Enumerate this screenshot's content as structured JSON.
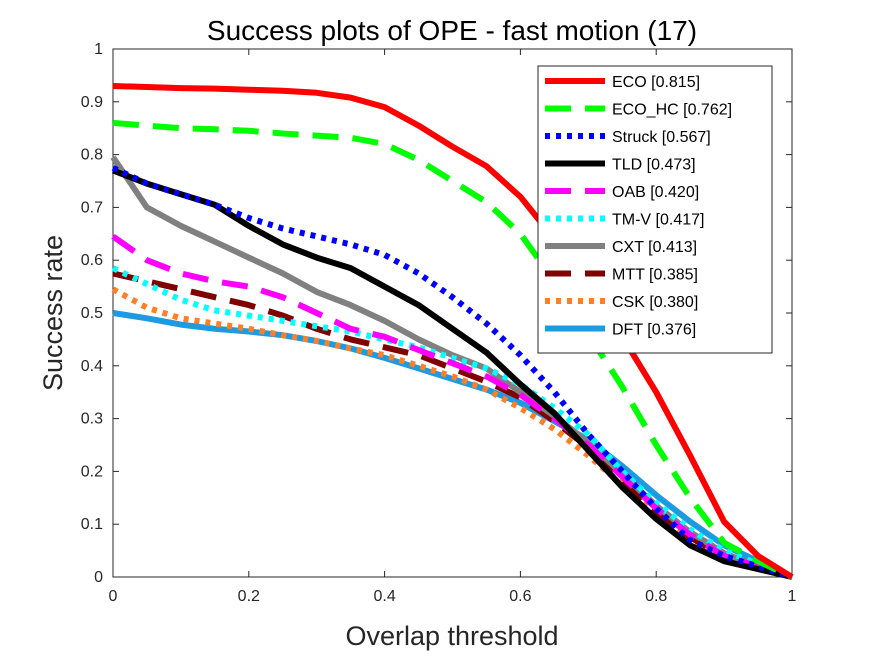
{
  "chart_data": {
    "type": "line",
    "title": "Success plots of OPE - fast motion (17)",
    "xlabel": "Overlap threshold",
    "ylabel": "Success rate",
    "xlim": [
      0,
      1
    ],
    "ylim": [
      0,
      1
    ],
    "x_ticks": [
      "0",
      "0.2",
      "0.4",
      "0.6",
      "0.8",
      "1"
    ],
    "y_ticks": [
      "0",
      "0.1",
      "0.2",
      "0.3",
      "0.4",
      "0.5",
      "0.6",
      "0.7",
      "0.8",
      "0.9",
      "1"
    ],
    "grid": false,
    "legend_position": "top-right",
    "x": [
      0,
      0.05,
      0.1,
      0.15,
      0.2,
      0.25,
      0.3,
      0.35,
      0.4,
      0.45,
      0.5,
      0.55,
      0.6,
      0.65,
      0.7,
      0.75,
      0.8,
      0.85,
      0.9,
      0.95,
      1
    ],
    "series": [
      {
        "name": "ECO [0.815]",
        "color": "#ff0000",
        "style": "solid",
        "values": [
          0.93,
          0.928,
          0.926,
          0.925,
          0.923,
          0.921,
          0.917,
          0.908,
          0.89,
          0.855,
          0.815,
          0.778,
          0.72,
          0.64,
          0.55,
          0.455,
          0.35,
          0.23,
          0.105,
          0.04,
          0.0
        ]
      },
      {
        "name": "ECO_HC [0.762]",
        "color": "#00ff00",
        "style": "dash",
        "values": [
          0.86,
          0.855,
          0.85,
          0.848,
          0.845,
          0.84,
          0.836,
          0.832,
          0.82,
          0.79,
          0.75,
          0.71,
          0.65,
          0.56,
          0.46,
          0.36,
          0.25,
          0.15,
          0.065,
          0.03,
          0.0
        ]
      },
      {
        "name": "Struck [0.567]",
        "color": "#0000ff",
        "style": "dot",
        "values": [
          0.775,
          0.745,
          0.725,
          0.705,
          0.68,
          0.66,
          0.645,
          0.63,
          0.61,
          0.575,
          0.53,
          0.48,
          0.42,
          0.35,
          0.27,
          0.2,
          0.13,
          0.07,
          0.04,
          0.02,
          0.0
        ]
      },
      {
        "name": "TLD [0.473]",
        "color": "#000000",
        "style": "solid",
        "values": [
          0.77,
          0.745,
          0.725,
          0.705,
          0.665,
          0.63,
          0.605,
          0.585,
          0.55,
          0.515,
          0.47,
          0.425,
          0.365,
          0.31,
          0.24,
          0.17,
          0.11,
          0.06,
          0.03,
          0.015,
          0.0
        ]
      },
      {
        "name": "OAB [0.420]",
        "color": "#ff00ff",
        "style": "dash",
        "values": [
          0.645,
          0.6,
          0.575,
          0.56,
          0.55,
          0.53,
          0.5,
          0.47,
          0.455,
          0.43,
          0.405,
          0.38,
          0.345,
          0.3,
          0.25,
          0.19,
          0.13,
          0.08,
          0.04,
          0.02,
          0.0
        ]
      },
      {
        "name": "TM-V [0.417]",
        "color": "#00ffff",
        "style": "dot",
        "values": [
          0.585,
          0.555,
          0.525,
          0.505,
          0.495,
          0.485,
          0.475,
          0.465,
          0.45,
          0.435,
          0.415,
          0.395,
          0.365,
          0.32,
          0.27,
          0.2,
          0.14,
          0.09,
          0.05,
          0.025,
          0.0
        ]
      },
      {
        "name": "CXT [0.413]",
        "color": "#808080",
        "style": "solid",
        "values": [
          0.795,
          0.7,
          0.665,
          0.635,
          0.605,
          0.575,
          0.54,
          0.515,
          0.485,
          0.45,
          0.42,
          0.395,
          0.35,
          0.305,
          0.255,
          0.195,
          0.135,
          0.085,
          0.045,
          0.02,
          0.0
        ]
      },
      {
        "name": "MTT [0.385]",
        "color": "#800000",
        "style": "dash",
        "values": [
          0.575,
          0.56,
          0.545,
          0.53,
          0.515,
          0.495,
          0.47,
          0.45,
          0.435,
          0.42,
          0.395,
          0.37,
          0.34,
          0.295,
          0.245,
          0.18,
          0.12,
          0.075,
          0.04,
          0.02,
          0.0
        ]
      },
      {
        "name": "CSK [0.380]",
        "color": "#ff7f27",
        "style": "dot",
        "values": [
          0.545,
          0.51,
          0.49,
          0.48,
          0.47,
          0.458,
          0.447,
          0.433,
          0.42,
          0.4,
          0.38,
          0.355,
          0.32,
          0.28,
          0.23,
          0.175,
          0.115,
          0.07,
          0.035,
          0.018,
          0.0
        ]
      },
      {
        "name": "DFT [0.376]",
        "color": "#1e9be0",
        "style": "solid",
        "values": [
          0.5,
          0.49,
          0.478,
          0.47,
          0.465,
          0.458,
          0.447,
          0.433,
          0.415,
          0.395,
          0.375,
          0.355,
          0.33,
          0.295,
          0.26,
          0.21,
          0.155,
          0.105,
          0.06,
          0.03,
          0.0
        ]
      }
    ]
  }
}
